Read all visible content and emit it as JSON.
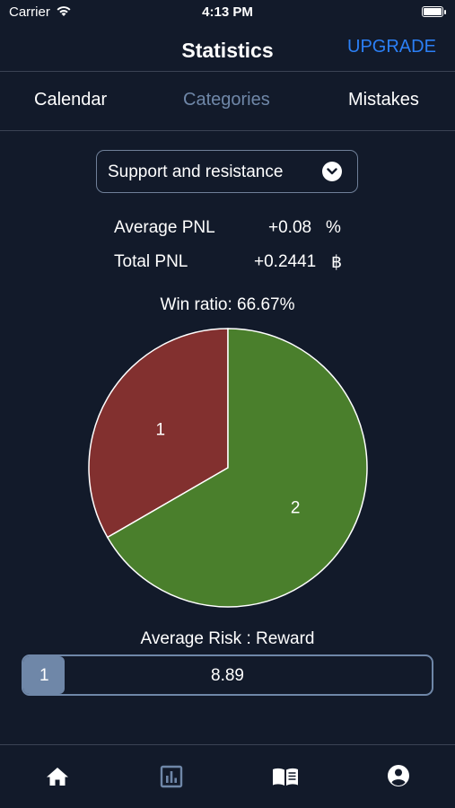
{
  "status_bar": {
    "carrier": "Carrier",
    "time": "4:13 PM"
  },
  "header": {
    "title": "Statistics",
    "upgrade_label": "UPGRADE"
  },
  "tabs": [
    {
      "label": "Calendar"
    },
    {
      "label": "Categories"
    },
    {
      "label": "Mistakes"
    }
  ],
  "active_tab": "Categories",
  "category_select": {
    "selected": "Support and resistance"
  },
  "stats": {
    "average_pnl": {
      "label": "Average PNL",
      "value": "+0.08",
      "unit": "%"
    },
    "total_pnl": {
      "label": "Total PNL",
      "value": "+0.2441",
      "unit": "฿"
    }
  },
  "win_ratio_text": "Win ratio: 66.67%",
  "chart_data": {
    "type": "pie",
    "slices": [
      {
        "label": "1",
        "value": 1,
        "color": "#82302f"
      },
      {
        "label": "2",
        "value": 2,
        "color": "#4a7f2c"
      }
    ]
  },
  "risk_reward": {
    "label": "Average Risk : Reward",
    "risk": "1",
    "reward": "8.89",
    "risk_fraction": 0.101
  },
  "tab_bar": [
    {
      "icon": "home-icon"
    },
    {
      "icon": "bar-chart-icon"
    },
    {
      "icon": "journal-book-icon"
    },
    {
      "icon": "account-icon"
    }
  ],
  "colors": {
    "background": "#121a2a",
    "accent": "#2b7ff5",
    "muted": "#6f87a8",
    "loss": "#82302f",
    "win": "#4a7f2c"
  }
}
